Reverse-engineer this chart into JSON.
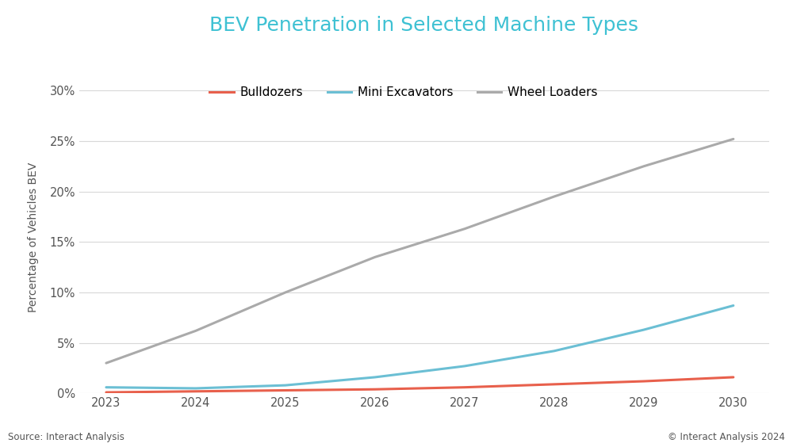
{
  "title": "BEV Penetration in Selected Machine Types",
  "title_color": "#3ec1d3",
  "xlabel": "",
  "ylabel": "Percentage of Vehicles BEV",
  "years": [
    2023,
    2024,
    2025,
    2026,
    2027,
    2028,
    2029,
    2030
  ],
  "bulldozers": [
    0.001,
    0.002,
    0.003,
    0.004,
    0.006,
    0.009,
    0.012,
    0.016
  ],
  "mini_excavators": [
    0.006,
    0.005,
    0.008,
    0.016,
    0.027,
    0.042,
    0.063,
    0.087
  ],
  "wheel_loaders": [
    0.03,
    0.062,
    0.1,
    0.135,
    0.163,
    0.195,
    0.225,
    0.252
  ],
  "bulldozers_color": "#e8604c",
  "mini_excavators_color": "#6bbfd4",
  "wheel_loaders_color": "#aaaaaa",
  "line_width": 2.2,
  "background_color": "#ffffff",
  "grid_color": "#d8d8d8",
  "legend_labels": [
    "Bulldozers",
    "Mini Excavators",
    "Wheel Loaders"
  ],
  "ylim": [
    0,
    0.31
  ],
  "yticks": [
    0,
    0.05,
    0.1,
    0.15,
    0.2,
    0.25,
    0.3
  ],
  "source_left": "Source: Interact Analysis",
  "source_right": "© Interact Analysis 2024"
}
